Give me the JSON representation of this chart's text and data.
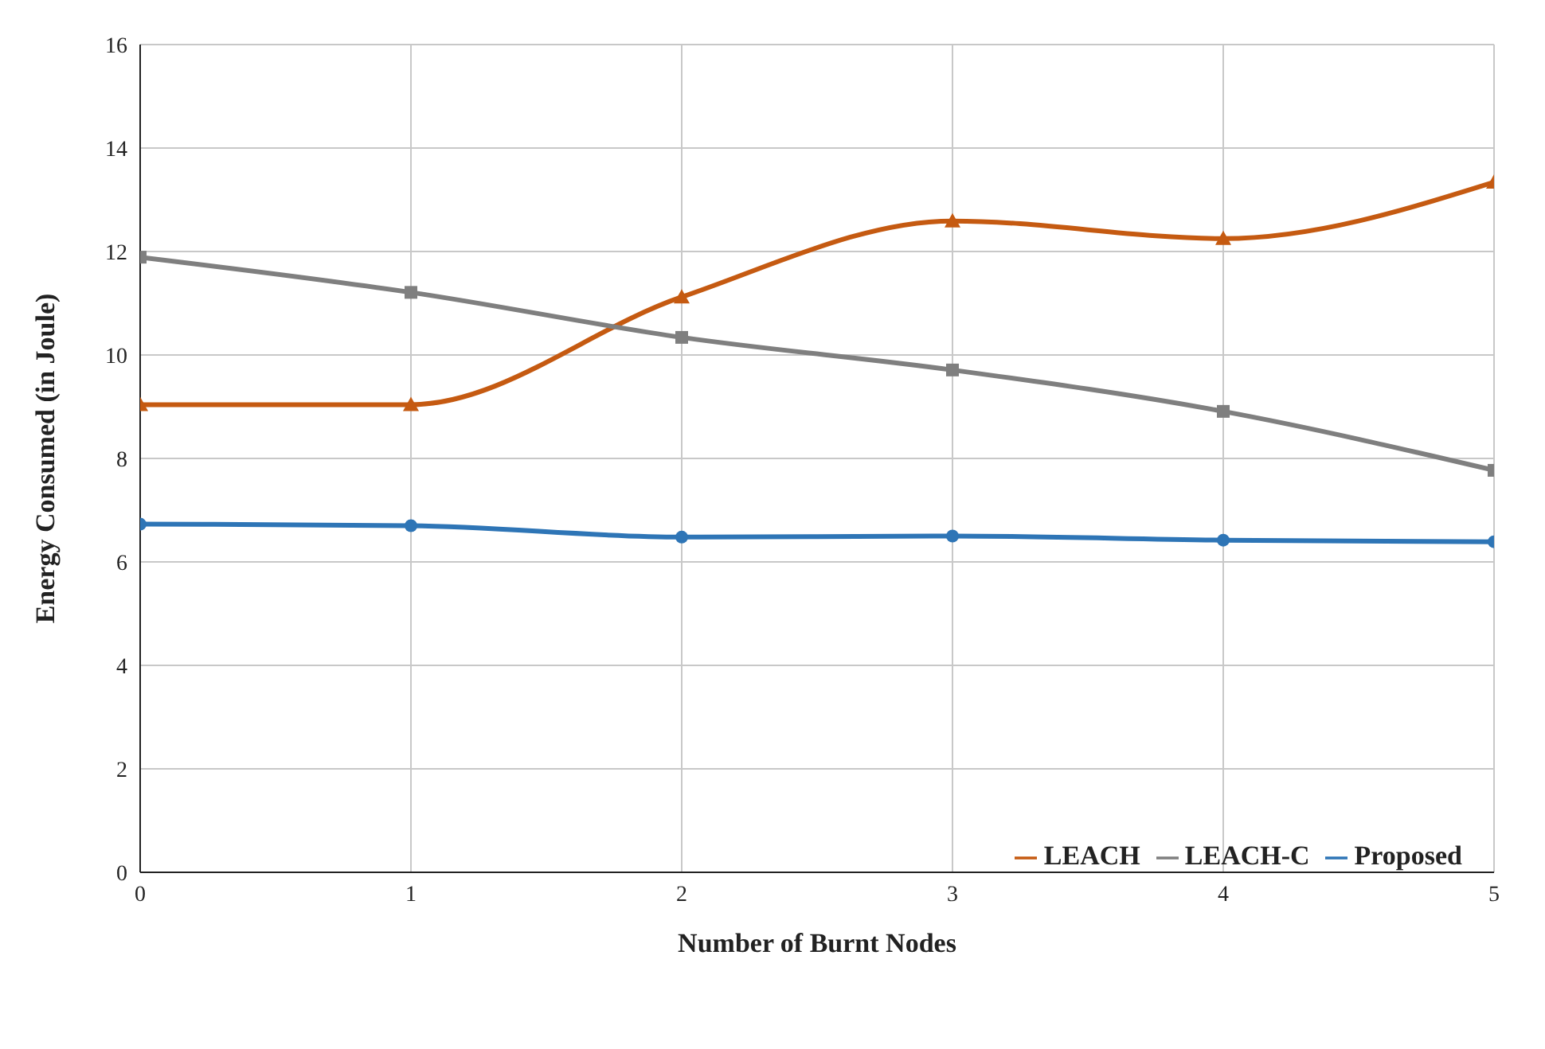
{
  "chart_data": {
    "type": "line",
    "xlabel": "Number of Burnt Nodes",
    "ylabel": "Energy Consumed (in Joule)",
    "x": [
      0,
      1,
      2,
      3,
      4,
      5
    ],
    "series": [
      {
        "name": "Proposed",
        "color": "#2e75b6",
        "marker": "circle",
        "values": [
          6.73,
          6.7,
          6.48,
          6.5,
          6.42,
          6.39
        ]
      },
      {
        "name": "LEACH",
        "color": "#c55a11",
        "marker": "triangle",
        "values": [
          9.04,
          9.04,
          11.12,
          12.59,
          12.25,
          13.34
        ]
      },
      {
        "name": "LEACH-C",
        "color": "#7f7f7f",
        "marker": "square",
        "values": [
          11.89,
          11.21,
          10.34,
          9.71,
          8.91,
          7.77
        ]
      }
    ],
    "xlim": [
      0,
      5
    ],
    "xticks": [
      0,
      1,
      2,
      3,
      4,
      5
    ],
    "ylim": [
      0,
      16
    ],
    "yticks": [
      0,
      2,
      4,
      6,
      8,
      10,
      12,
      14,
      16
    ],
    "grid": true,
    "legend": "bottom right",
    "line_style": "solid"
  }
}
